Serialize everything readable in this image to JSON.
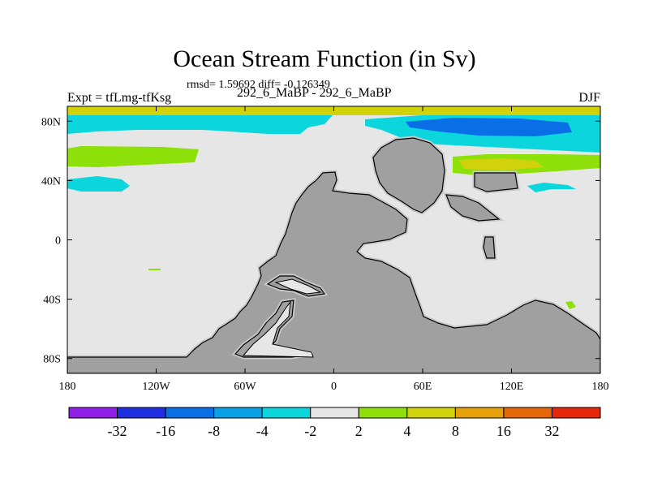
{
  "title": "Ocean Stream Function (in Sv)",
  "subtitle": "rmsd= 1.59692 diff= -0.126349",
  "left_label": "Expt = tfLmg-tfKsg",
  "center_label": "292_6_MaBP - 292_6_MaBP",
  "right_label": "DJF",
  "colors": {
    "background": "#e6e6e6",
    "land": "#a0a0a0",
    "land_outline": "#000000",
    "land_halo": "#c8c8c8"
  },
  "chart_data": {
    "type": "heatmap",
    "x_ticks": [
      "180",
      "120W",
      "60W",
      "0",
      "60E",
      "120E",
      "180"
    ],
    "y_ticks": [
      "80N",
      "40N",
      "0",
      "40S",
      "80S"
    ],
    "x_range": [
      -180,
      180
    ],
    "y_range": [
      -90,
      90
    ],
    "colorbar": {
      "labels": [
        "-32",
        "-16",
        "-8",
        "-4",
        "-2",
        "2",
        "4",
        "8",
        "16",
        "32"
      ],
      "colors": [
        "#8f1ee6",
        "#1e2ee0",
        "#0a6ee6",
        "#0aa0e6",
        "#0ad6dc",
        "#e6e6e6",
        "#8ee00a",
        "#d2d20a",
        "#e6a00a",
        "#e6660a",
        "#e6280a"
      ]
    },
    "regions": [
      {
        "name": "arctic-top-band",
        "value": 8
      },
      {
        "name": "arctic-cyan-band",
        "value": -3
      },
      {
        "name": "arctic-east-deep-blue",
        "value": -12
      },
      {
        "name": "north-pacific-green-band",
        "value": 3
      },
      {
        "name": "north-pacific-cyan-band",
        "value": -3
      },
      {
        "name": "north-east-green-band",
        "value": 3
      },
      {
        "name": "north-east-yellow-core",
        "value": 6
      },
      {
        "name": "north-east-cyan-patch",
        "value": -3
      },
      {
        "name": "south-pacific-green-sliver",
        "value": 3
      },
      {
        "name": "south-east-green-patch",
        "value": 3
      }
    ]
  }
}
